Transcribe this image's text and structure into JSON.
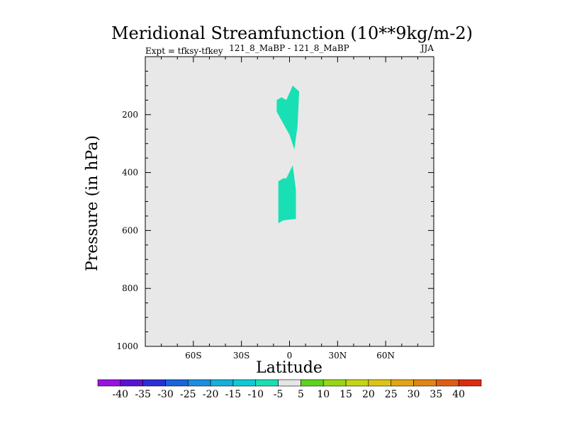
{
  "chart_data": {
    "type": "contour",
    "title": "Meridional Streamfunction (10**9kg/m-2)",
    "subtitle_left": "Expt = tfksy-tfkey",
    "subtitle_center": "121_8_MaBP - 121_8_MaBP",
    "subtitle_right": "JJA",
    "xlabel": "Latitude",
    "ylabel": "Pressure (in hPa)",
    "xlim": [
      -90,
      90
    ],
    "ylim": [
      1000,
      0
    ],
    "x_ticks": [
      {
        "value": -60,
        "label": "60S"
      },
      {
        "value": -30,
        "label": "30S"
      },
      {
        "value": 0,
        "label": "0"
      },
      {
        "value": 30,
        "label": "30N"
      },
      {
        "value": 60,
        "label": "60N"
      }
    ],
    "y_ticks": [
      {
        "value": 200,
        "label": "200"
      },
      {
        "value": 400,
        "label": "400"
      },
      {
        "value": 600,
        "label": "600"
      },
      {
        "value": 800,
        "label": "800"
      },
      {
        "value": 1000,
        "label": "1000"
      }
    ],
    "background_fill": "#e8e8e8",
    "regions": [
      {
        "name": "upper-region",
        "level": "-10 to -5",
        "color": "#19e0b4",
        "points": [
          [
            -8,
            150
          ],
          [
            -5,
            140
          ],
          [
            -2,
            150
          ],
          [
            2,
            100
          ],
          [
            6,
            120
          ],
          [
            5,
            240
          ],
          [
            3,
            320
          ],
          [
            0,
            270
          ],
          [
            -2,
            250
          ],
          [
            -4,
            230
          ],
          [
            -8,
            190
          ]
        ]
      },
      {
        "name": "lower-region",
        "level": "-10 to -5",
        "color": "#19e0b4",
        "points": [
          [
            -7,
            430
          ],
          [
            -4,
            420
          ],
          [
            -2,
            420
          ],
          [
            2,
            375
          ],
          [
            4,
            460
          ],
          [
            4,
            560
          ],
          [
            -4,
            565
          ],
          [
            -7,
            575
          ]
        ]
      }
    ],
    "colorbar": {
      "labels": [
        "-40",
        "-35",
        "-30",
        "-25",
        "-20",
        "-15",
        "-10",
        "-5",
        "5",
        "10",
        "15",
        "20",
        "25",
        "30",
        "35",
        "40"
      ],
      "colors": [
        "#9a12e0",
        "#5b12d4",
        "#2b2ed6",
        "#1a64dc",
        "#1a8ee0",
        "#16b0dc",
        "#0fcad2",
        "#19e0b4",
        "#e6e6e6",
        "#5cd41e",
        "#98d616",
        "#c6d414",
        "#dcc414",
        "#e0a614",
        "#e08414",
        "#e05c14",
        "#dc2c10"
      ]
    }
  }
}
